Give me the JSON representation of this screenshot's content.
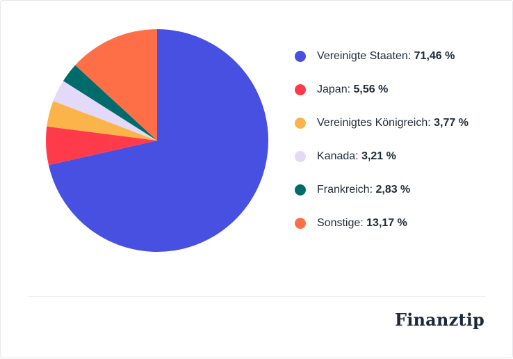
{
  "chart_data": {
    "type": "pie",
    "slices": [
      {
        "label": "Vereinigte Staaten",
        "value": 71.46,
        "value_label": "71,46 %",
        "color": "#4750e0"
      },
      {
        "label": "Japan",
        "value": 5.56,
        "value_label": "5,56 %",
        "color": "#ff3a4a"
      },
      {
        "label": "Vereinigtes Königreich",
        "value": 3.77,
        "value_label": "3,77 %",
        "color": "#fbb449"
      },
      {
        "label": "Kanada",
        "value": 3.21,
        "value_label": "3,21 %",
        "color": "#e3d9f8"
      },
      {
        "label": "Frankreich",
        "value": 2.83,
        "value_label": "2,83 %",
        "color": "#006b6b"
      },
      {
        "label": "Sonstige",
        "value": 13.17,
        "value_label": "13,17 %",
        "color": "#ff6f47"
      }
    ],
    "legend_position": "right"
  },
  "brand": {
    "logo_text": "Finanztip"
  }
}
